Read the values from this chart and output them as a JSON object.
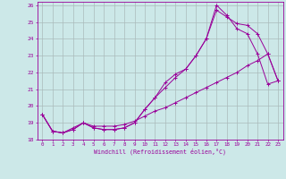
{
  "xlabel": "Windchill (Refroidissement éolien,°C)",
  "bg_color": "#cce8e8",
  "line_color": "#990099",
  "grid_color": "#aabbbb",
  "xlim": [
    -0.5,
    23.5
  ],
  "ylim": [
    18.0,
    26.2
  ],
  "yticks": [
    18,
    19,
    20,
    21,
    22,
    23,
    24,
    25,
    26
  ],
  "xticks": [
    0,
    1,
    2,
    3,
    4,
    5,
    6,
    7,
    8,
    9,
    10,
    11,
    12,
    13,
    14,
    15,
    16,
    17,
    18,
    19,
    20,
    21,
    22,
    23
  ],
  "line1_x": [
    0,
    1,
    2,
    3,
    4,
    5,
    6,
    7,
    8,
    9,
    10,
    11,
    12,
    13,
    14,
    15,
    16,
    17,
    18,
    19,
    20,
    21,
    22,
    23
  ],
  "line1_y": [
    19.5,
    18.5,
    18.4,
    18.6,
    19.0,
    18.7,
    18.6,
    18.6,
    18.7,
    19.0,
    19.8,
    20.5,
    21.4,
    21.9,
    22.2,
    23.0,
    24.0,
    26.0,
    25.4,
    24.6,
    24.3,
    23.1,
    21.3,
    21.5
  ],
  "line2_x": [
    0,
    1,
    2,
    3,
    4,
    5,
    6,
    7,
    8,
    9,
    10,
    11,
    12,
    13,
    14,
    15,
    16,
    17,
    18,
    19,
    20,
    21,
    22,
    23
  ],
  "line2_y": [
    19.5,
    18.5,
    18.4,
    18.6,
    19.0,
    18.7,
    18.6,
    18.6,
    18.7,
    19.0,
    19.8,
    20.5,
    21.1,
    21.7,
    22.2,
    23.0,
    24.0,
    25.7,
    25.3,
    24.9,
    24.8,
    24.3,
    23.1,
    21.5
  ],
  "line3_x": [
    0,
    1,
    2,
    3,
    4,
    5,
    6,
    7,
    8,
    9,
    10,
    11,
    12,
    13,
    14,
    15,
    16,
    17,
    18,
    19,
    20,
    21,
    22,
    23
  ],
  "line3_y": [
    19.5,
    18.5,
    18.4,
    18.7,
    19.0,
    18.8,
    18.8,
    18.8,
    18.9,
    19.1,
    19.4,
    19.7,
    19.9,
    20.2,
    20.5,
    20.8,
    21.1,
    21.4,
    21.7,
    22.0,
    22.4,
    22.7,
    23.1,
    21.5
  ]
}
